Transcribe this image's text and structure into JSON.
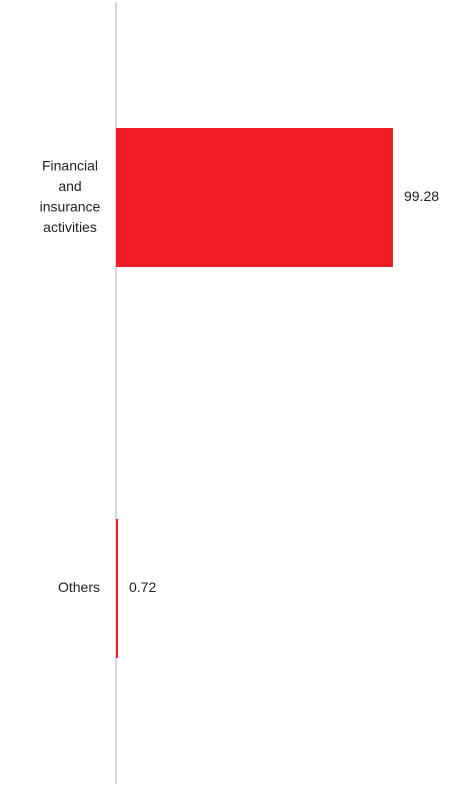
{
  "chart_data": {
    "type": "bar",
    "orientation": "horizontal",
    "categories": [
      "Financial and insurance activities",
      "Others"
    ],
    "category_lines": [
      [
        "Financial",
        "and",
        "insurance",
        "activities"
      ],
      [
        "Others"
      ]
    ],
    "values": [
      99.28,
      0.72
    ],
    "value_labels": [
      "99.28",
      "0.72"
    ],
    "xlim": [
      0,
      100
    ],
    "grid": false,
    "legend": "none",
    "title": "",
    "xlabel": "",
    "ylabel": ""
  },
  "colors": {
    "bar": "#ee1f26",
    "axis": "#cccccc",
    "text": "#222222"
  }
}
